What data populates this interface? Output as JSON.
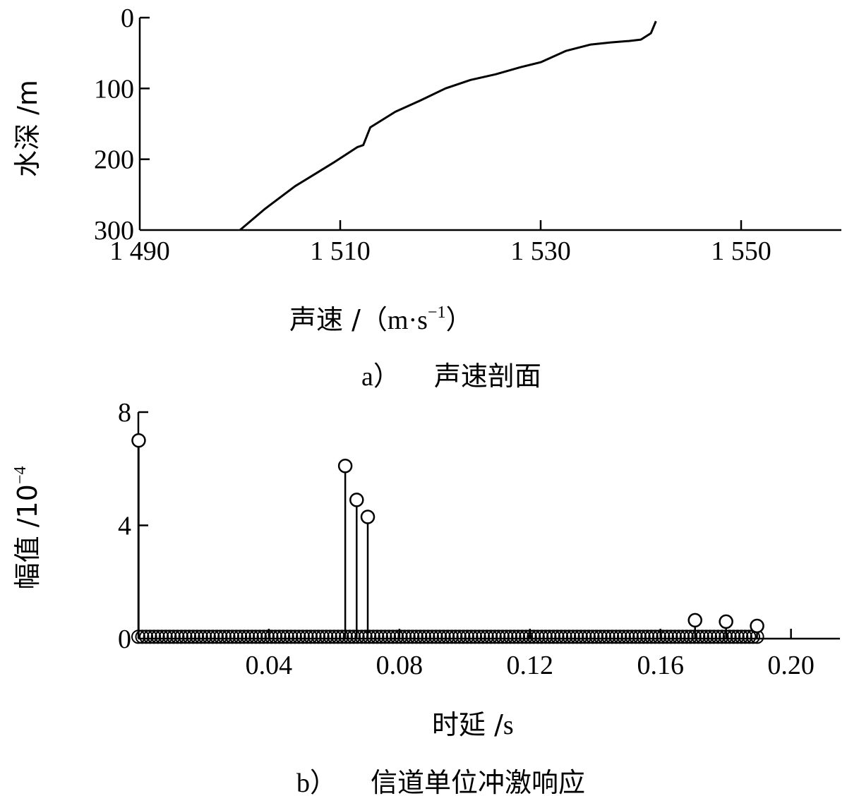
{
  "chart_data": [
    {
      "type": "line",
      "caption_letter": "a）",
      "caption_text": "声速剖面",
      "xlabel_main": "声速 /",
      "xlabel_unit": "（m·s",
      "xlabel_sup": "−1",
      "xlabel_close": "）",
      "ylabel": "水深 /m",
      "xlim": [
        1490,
        1560
      ],
      "ylim": [
        0,
        300
      ],
      "y_inverted": true,
      "xticks": [
        1490,
        1510,
        1530,
        1550
      ],
      "xtick_labels": [
        "1 490",
        "1 510",
        "1 530",
        "1 550"
      ],
      "yticks": [
        0,
        100,
        200,
        300
      ],
      "ytick_labels": [
        "0",
        "100",
        "200",
        "300"
      ],
      "series": [
        {
          "points": [
            [
              1541.5,
              5
            ],
            [
              1541,
              22
            ],
            [
              1540,
              31
            ],
            [
              1538.8,
              33
            ],
            [
              1537,
              35
            ],
            [
              1535,
              38
            ],
            [
              1532.5,
              47
            ],
            [
              1530,
              63
            ],
            [
              1528,
              70
            ],
            [
              1525.5,
              80
            ],
            [
              1523,
              88
            ],
            [
              1520.5,
              100
            ],
            [
              1518,
              117
            ],
            [
              1515.5,
              133
            ],
            [
              1513,
              155
            ],
            [
              1512.3,
              180
            ],
            [
              1511.7,
              183
            ],
            [
              1509.3,
              205
            ],
            [
              1507,
              225
            ],
            [
              1505.5,
              238
            ],
            [
              1502.5,
              270
            ],
            [
              1500,
              300
            ]
          ]
        }
      ]
    },
    {
      "type": "stem",
      "caption_letter": "b）",
      "caption_text": "信道单位冲激响应",
      "xlabel_main": "时延 /",
      "xlabel_unit": "s",
      "ylabel_main": "幅值 /10",
      "ylabel_sup": "−4",
      "xlim": [
        0,
        0.215
      ],
      "ylim": [
        0,
        8
      ],
      "xticks": [
        0.04,
        0.08,
        0.12,
        0.16,
        0.2
      ],
      "xtick_labels": [
        "0.04",
        "0.08",
        "0.12",
        "0.16",
        "0.20"
      ],
      "yticks": [
        0,
        4,
        8
      ],
      "ytick_labels": [
        "0",
        "4",
        "8"
      ],
      "dense_floor": {
        "x_start": 0.0,
        "x_end": 0.19,
        "step": 0.0012,
        "value": 0.04
      },
      "peaks": [
        {
          "x": 0.0001,
          "y": 7.0
        },
        {
          "x": 0.0634,
          "y": 6.1
        },
        {
          "x": 0.0669,
          "y": 4.9
        },
        {
          "x": 0.0703,
          "y": 4.3
        },
        {
          "x": 0.1706,
          "y": 0.65
        },
        {
          "x": 0.1801,
          "y": 0.6
        },
        {
          "x": 0.1896,
          "y": 0.45
        }
      ]
    }
  ]
}
